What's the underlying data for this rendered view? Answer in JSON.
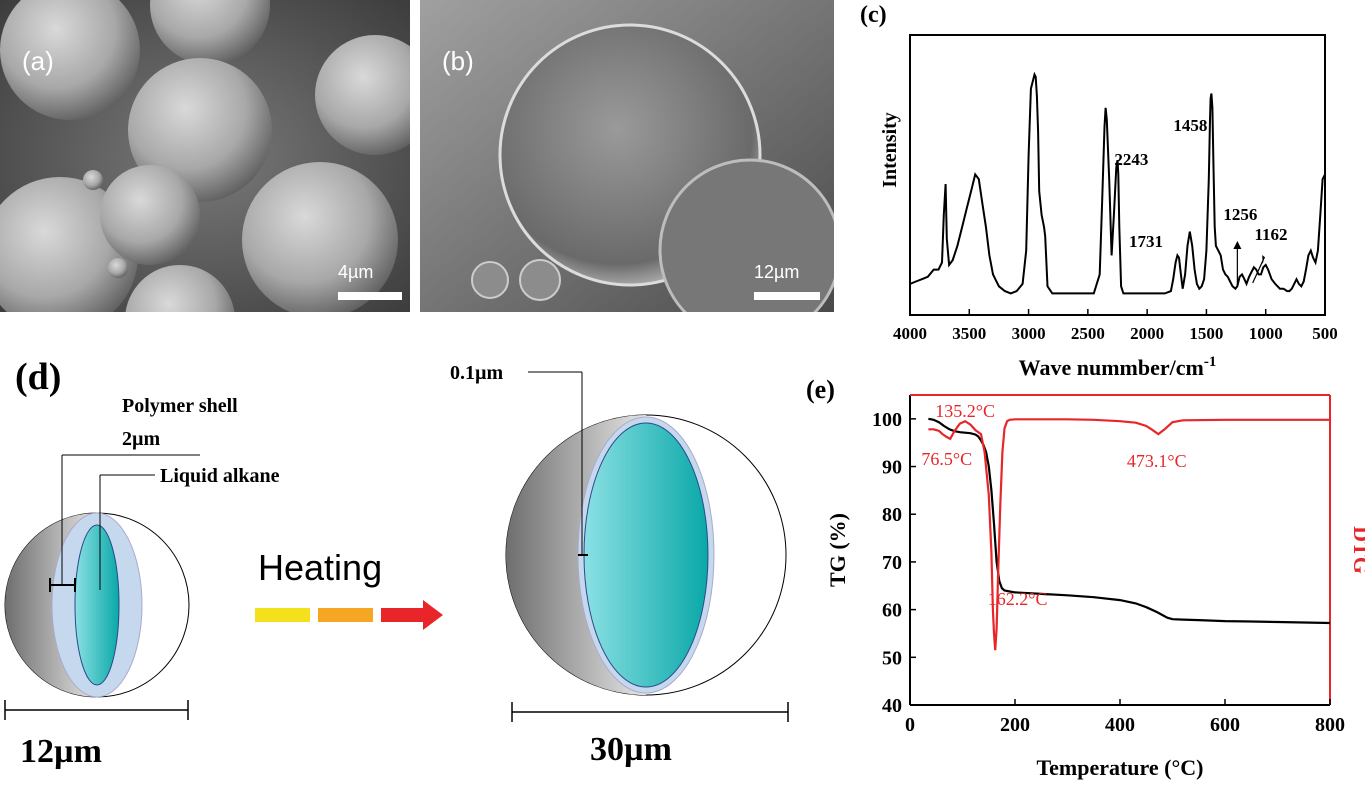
{
  "panels": {
    "a": {
      "label": "(a)",
      "scale": "4µm"
    },
    "b": {
      "label": "(b)",
      "scale": "12µm"
    },
    "c": {
      "label": "(c)"
    },
    "d": {
      "label": "(d)",
      "shell_label": "Polymer shell",
      "shell_thickness": "2µm",
      "core_label": "Liquid alkane",
      "small_size": "12µm",
      "heating_label": "Heating",
      "expanded_shell": "0.1µm",
      "large_size": "30µm",
      "colors": {
        "core": "#1fb5b5",
        "shell": "#c6d8ee",
        "grey": "#8a8a8a",
        "arrow1": "#f2e11b",
        "arrow2": "#f5a623",
        "arrow3": "#e8262a"
      }
    },
    "e": {
      "label": "(e)"
    }
  },
  "chart_data": [
    {
      "type": "line",
      "panel": "c",
      "xlabel": "Wave nummber/cm",
      "xlabel_sup": "-1",
      "ylabel": "Intensity",
      "xlim": [
        4000,
        500
      ],
      "xticks": [
        4000,
        3500,
        3000,
        2500,
        2000,
        1500,
        1000,
        500
      ],
      "annotations": [
        {
          "text": "2243",
          "x": 2243
        },
        {
          "text": "1458",
          "x": 1458
        },
        {
          "text": "1731",
          "x": 1731
        },
        {
          "text": "1256",
          "x": 1256
        },
        {
          "text": "1162",
          "x": 1162
        }
      ],
      "series": [
        {
          "x": [
            4000,
            3950,
            3900,
            3850,
            3800,
            3760,
            3730,
            3715,
            3700,
            3690,
            3670,
            3640,
            3600,
            3560,
            3520,
            3480,
            3450,
            3420,
            3390,
            3360,
            3330,
            3300,
            3250,
            3200,
            3150,
            3100,
            3050,
            3020,
            3000,
            2980,
            2960,
            2950,
            2940,
            2930,
            2920,
            2910,
            2890,
            2870,
            2860,
            2850,
            2840,
            2800,
            2750,
            2700,
            2650,
            2600,
            2550,
            2500,
            2450,
            2400,
            2380,
            2360,
            2350,
            2340,
            2320,
            2300,
            2280,
            2260,
            2250,
            2243,
            2235,
            2220,
            2200,
            2150,
            2100,
            2050,
            2000,
            1950,
            1900,
            1850,
            1800,
            1780,
            1760,
            1745,
            1731,
            1715,
            1700,
            1680,
            1660,
            1640,
            1620,
            1600,
            1580,
            1560,
            1540,
            1520,
            1500,
            1480,
            1470,
            1465,
            1458,
            1450,
            1440,
            1430,
            1420,
            1400,
            1380,
            1360,
            1340,
            1320,
            1300,
            1280,
            1256,
            1240,
            1220,
            1200,
            1180,
            1162,
            1140,
            1120,
            1100,
            1080,
            1060,
            1040,
            1020,
            1000,
            980,
            950,
            920,
            900,
            880,
            850,
            820,
            800,
            780,
            760,
            740,
            720,
            700,
            680,
            660,
            640,
            620,
            600,
            580,
            560,
            540,
            520,
            500
          ],
          "y": [
            0.06,
            0.07,
            0.08,
            0.09,
            0.12,
            0.12,
            0.15,
            0.35,
            0.48,
            0.25,
            0.14,
            0.16,
            0.22,
            0.3,
            0.38,
            0.46,
            0.52,
            0.5,
            0.4,
            0.3,
            0.18,
            0.1,
            0.05,
            0.03,
            0.02,
            0.03,
            0.06,
            0.2,
            0.6,
            0.88,
            0.92,
            0.94,
            0.93,
            0.85,
            0.7,
            0.45,
            0.35,
            0.3,
            0.26,
            0.15,
            0.05,
            0.02,
            0.02,
            0.02,
            0.02,
            0.02,
            0.02,
            0.02,
            0.02,
            0.1,
            0.4,
            0.72,
            0.8,
            0.75,
            0.5,
            0.18,
            0.35,
            0.55,
            0.58,
            0.52,
            0.3,
            0.05,
            0.02,
            0.02,
            0.02,
            0.02,
            0.02,
            0.02,
            0.02,
            0.02,
            0.03,
            0.08,
            0.15,
            0.18,
            0.17,
            0.1,
            0.04,
            0.1,
            0.22,
            0.28,
            0.22,
            0.12,
            0.06,
            0.04,
            0.05,
            0.08,
            0.2,
            0.5,
            0.75,
            0.84,
            0.86,
            0.8,
            0.55,
            0.3,
            0.22,
            0.2,
            0.18,
            0.12,
            0.1,
            0.09,
            0.07,
            0.05,
            0.04,
            0.05,
            0.09,
            0.1,
            0.08,
            0.06,
            0.09,
            0.11,
            0.13,
            0.12,
            0.1,
            0.1,
            0.13,
            0.14,
            0.12,
            0.08,
            0.06,
            0.05,
            0.04,
            0.04,
            0.03,
            0.03,
            0.04,
            0.06,
            0.08,
            0.06,
            0.05,
            0.07,
            0.12,
            0.18,
            0.2,
            0.17,
            0.15,
            0.2,
            0.35,
            0.5,
            0.52
          ]
        }
      ]
    },
    {
      "type": "line",
      "panel": "e",
      "xlabel": "Temperature (°C)",
      "ylabel": "TG (%)",
      "ylabel_right": "DTG",
      "xlim": [
        0,
        800
      ],
      "ylim": [
        40,
        105
      ],
      "xticks": [
        0,
        200,
        400,
        600,
        800
      ],
      "yticks": [
        40,
        50,
        60,
        70,
        80,
        90,
        100
      ],
      "annotations": [
        {
          "text": "135.2°C",
          "x": 135.2
        },
        {
          "text": "76.5°C",
          "x": 76.5
        },
        {
          "text": "473.1°C",
          "x": 473.1
        },
        {
          "text": "162.2°C",
          "x": 162.2
        }
      ],
      "series": [
        {
          "name": "TG",
          "color": "#000000",
          "x": [
            35,
            45,
            55,
            65,
            75,
            85,
            95,
            105,
            115,
            125,
            130,
            135,
            140,
            145,
            150,
            155,
            160,
            165,
            170,
            175,
            180,
            190,
            200,
            250,
            300,
            350,
            400,
            430,
            450,
            470,
            490,
            500,
            520,
            550,
            600,
            650,
            700,
            750,
            800
          ],
          "y": [
            100,
            99.8,
            99.3,
            98.5,
            97.8,
            97.4,
            97.2,
            97.1,
            97,
            96.7,
            96.3,
            95.5,
            94.5,
            93,
            90,
            85,
            78,
            70,
            66,
            64.5,
            64,
            63.8,
            63.6,
            63.3,
            63,
            62.6,
            62,
            61.3,
            60.5,
            59.5,
            58.3,
            58,
            57.9,
            57.8,
            57.6,
            57.5,
            57.4,
            57.3,
            57.2
          ]
        },
        {
          "name": "DTG",
          "color": "#e8262a",
          "x": [
            35,
            45,
            55,
            62,
            70,
            76.5,
            85,
            95,
            105,
            115,
            125,
            135.2,
            142,
            150,
            155,
            158,
            160,
            162.2,
            165,
            168,
            172,
            176,
            180,
            185,
            190,
            200,
            250,
            300,
            350,
            400,
            430,
            450,
            460,
            473.1,
            485,
            500,
            520,
            600,
            700,
            800
          ],
          "y": [
            97.8,
            97.8,
            97.5,
            96.8,
            96.2,
            95.8,
            97.5,
            99,
            99.5,
            98.8,
            97.6,
            96.8,
            93,
            84,
            72,
            60,
            55,
            51.5,
            56,
            68,
            82,
            93,
            98,
            99.5,
            99.8,
            99.9,
            99.9,
            99.9,
            99.8,
            99.5,
            99.2,
            98.5,
            97.8,
            96.8,
            97.8,
            99.3,
            99.7,
            99.8,
            99.8,
            99.8
          ]
        }
      ]
    }
  ]
}
